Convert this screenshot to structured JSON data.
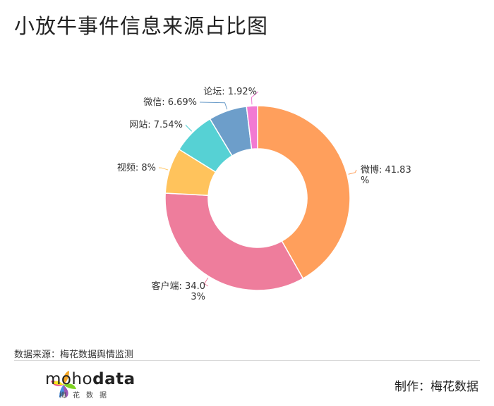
{
  "title": "小放牛事件信息来源占比图",
  "source": "数据来源：梅花数据舆情监测",
  "maker": "制作：梅花数据",
  "logo": {
    "name_regular": "moho",
    "name_bold": "data",
    "subtitle": "梅花数据"
  },
  "chart_data": {
    "type": "pie",
    "variant": "donut",
    "unit": "%",
    "slices": [
      {
        "label": "微博",
        "value": 41.83,
        "color": "#FF9F5C",
        "text_lines": [
          "微博: 41.83",
          "%"
        ]
      },
      {
        "label": "客户端",
        "value": 34.03,
        "color": "#EE7D9C",
        "text_lines": [
          "客户端: 34.0",
          "3%"
        ]
      },
      {
        "label": "视频",
        "value": 8,
        "color": "#FFC35C",
        "text_lines": [
          "视频: 8%"
        ]
      },
      {
        "label": "网站",
        "value": 7.54,
        "color": "#56D1D4",
        "text_lines": [
          "网站: 7.54%"
        ]
      },
      {
        "label": "微信",
        "value": 6.69,
        "color": "#6D9ECA",
        "text_lines": [
          "微信: 6.69%"
        ]
      },
      {
        "label": "论坛",
        "value": 1.92,
        "color": "#F279D2",
        "text_lines": [
          "论坛: 1.92%"
        ]
      }
    ]
  }
}
